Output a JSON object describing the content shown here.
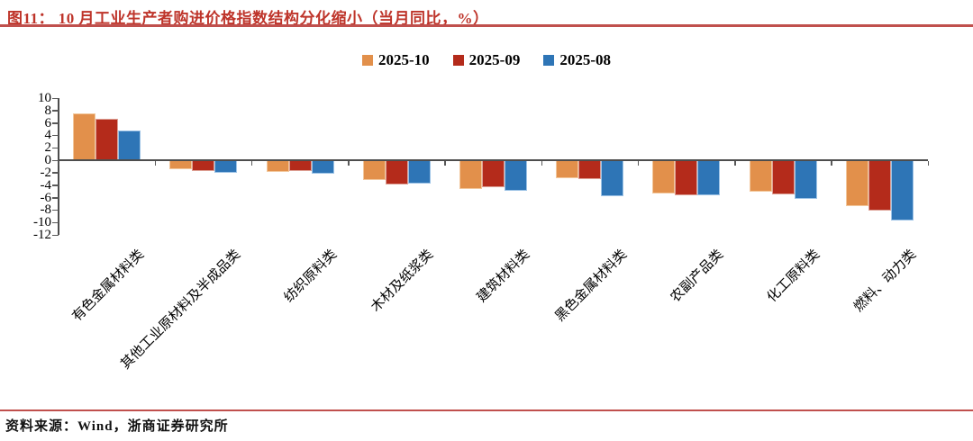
{
  "page": {
    "title": "图11：  10 月工业生产者购进价格指数结构分化缩小（当月同比，%）",
    "source_note": "资料来源：Wind，浙商证券研究所"
  },
  "colors": {
    "title_text": "#BE342A",
    "rule": "#C0504D",
    "axis": "#4d4d4d",
    "tick": "#595959"
  },
  "chart_data": {
    "type": "bar",
    "title": "10月工业生产者购进价格指数结构分化缩小（当月同比，%）",
    "categories": [
      "有色金属材料类",
      "其他工业原材料及半成品类",
      "纺织原料类",
      "木材及纸浆类",
      "建筑材料类",
      "黑色金属材料类",
      "农副产品类",
      "化工原料类",
      "燃料、动力类"
    ],
    "series": [
      {
        "name": "2025-10",
        "color": "#E2904B",
        "border": "#F2C79C",
        "values": [
          7.6,
          -1.5,
          -1.9,
          -3.2,
          -4.6,
          -2.9,
          -5.3,
          -5.1,
          -7.4
        ]
      },
      {
        "name": "2025-09",
        "color": "#B42B1B",
        "border": "#DDA095",
        "values": [
          6.6,
          -1.7,
          -1.7,
          -3.9,
          -4.4,
          -3.0,
          -5.7,
          -5.5,
          -8.1
        ]
      },
      {
        "name": "2025-08",
        "color": "#2E75B6",
        "border": "#9DC3E6",
        "values": [
          4.8,
          -2.0,
          -2.1,
          -3.8,
          -4.9,
          -5.8,
          -5.7,
          -6.2,
          -9.7
        ]
      }
    ],
    "ylim": [
      -12,
      10
    ],
    "ytick_step": 2,
    "unit": "%",
    "grid": false,
    "legend_position": "top-center"
  }
}
